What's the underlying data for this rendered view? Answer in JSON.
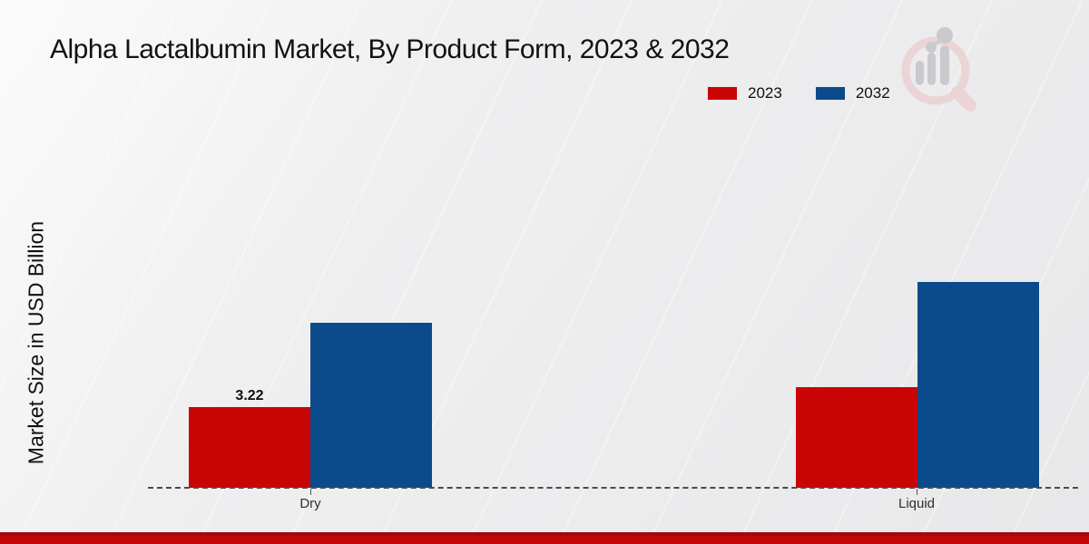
{
  "page": {
    "title": "Alpha Lactalbumin Market, By Product Form, 2023 & 2032"
  },
  "colors": {
    "series_2023_red": "#c90404",
    "series_2032_blue": "#0b4a8b",
    "footer_stripe_red": "#c50606",
    "baseline_gray": "#4a4a4a"
  },
  "icons": {
    "watermark": "magnifier-bar-chart-watermark-logo"
  },
  "chart_data": {
    "type": "bar",
    "title": "Alpha Lactalbumin Market, By Product Form, 2023 & 2032",
    "xlabel": "",
    "ylabel": "Market Size in USD Billion",
    "categories": [
      "Dry",
      "Liquid"
    ],
    "series": [
      {
        "name": "2023",
        "color": "#c90404",
        "values": [
          3.22,
          4.0
        ],
        "shown_labels": [
          "3.22",
          ""
        ]
      },
      {
        "name": "2032",
        "color": "#0b4a8b",
        "values": [
          6.6,
          8.2
        ],
        "shown_labels": [
          "",
          ""
        ]
      }
    ],
    "ylim": [
      0,
      10
    ],
    "y_axis_ticks_visible": false,
    "gridlines": false,
    "baseline_style": "dashed",
    "legend_position": "top-right"
  }
}
